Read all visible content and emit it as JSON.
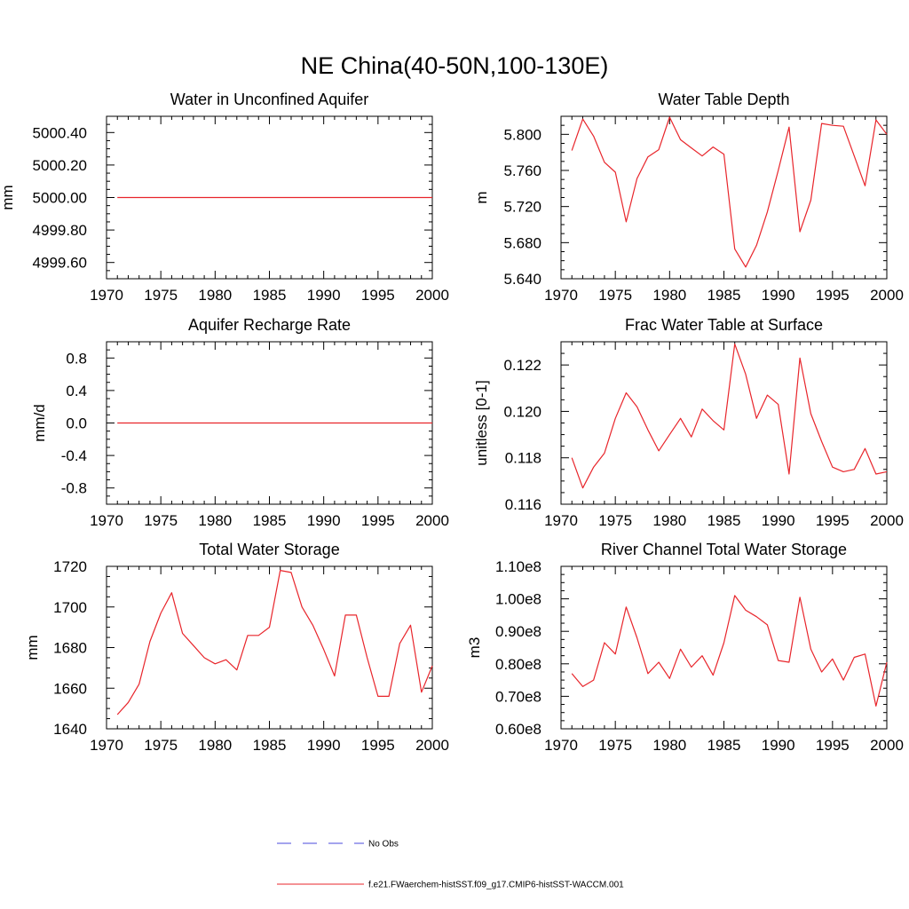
{
  "page_title": "NE China(40-50N,100-130E)",
  "legend": {
    "obs_label": "No Obs",
    "obs_color": "#4a4adc",
    "model_label": "f.e21.FWaerchem-histSST.f09_g17.CMIP6-histSST-WACCM.001",
    "model_color": "#e8252b"
  },
  "chart_data": [
    {
      "type": "line",
      "title": "Water in Unconfined Aquifer",
      "ylabel": "mm",
      "xlim": [
        1970,
        2000
      ],
      "ylim": [
        4999.5,
        5000.5
      ],
      "xticks": [
        1970,
        1975,
        1980,
        1985,
        1990,
        1995,
        2000
      ],
      "yticks": [
        4999.6,
        4999.8,
        5000.0,
        5000.2,
        5000.4
      ],
      "ytick_labels": [
        "4999.60",
        "4999.80",
        "5000.00",
        "5000.20",
        "5000.40"
      ],
      "x": [
        1971,
        1972,
        1973,
        1974,
        1975,
        1976,
        1977,
        1978,
        1979,
        1980,
        1981,
        1982,
        1983,
        1984,
        1985,
        1986,
        1987,
        1988,
        1989,
        1990,
        1991,
        1992,
        1993,
        1994,
        1995,
        1996,
        1997,
        1998,
        1999,
        2000
      ],
      "values": [
        5000,
        5000,
        5000,
        5000,
        5000,
        5000,
        5000,
        5000,
        5000,
        5000,
        5000,
        5000,
        5000,
        5000,
        5000,
        5000,
        5000,
        5000,
        5000,
        5000,
        5000,
        5000,
        5000,
        5000,
        5000,
        5000,
        5000,
        5000,
        5000,
        5000
      ]
    },
    {
      "type": "line",
      "title": "Water Table Depth",
      "ylabel": "m",
      "xlim": [
        1970,
        2000
      ],
      "ylim": [
        5.64,
        5.82
      ],
      "xticks": [
        1970,
        1975,
        1980,
        1985,
        1990,
        1995,
        2000
      ],
      "yticks": [
        5.64,
        5.68,
        5.72,
        5.76,
        5.8
      ],
      "ytick_labels": [
        "5.640",
        "5.680",
        "5.720",
        "5.760",
        "5.800"
      ],
      "x": [
        1971,
        1972,
        1973,
        1974,
        1975,
        1976,
        1977,
        1978,
        1979,
        1980,
        1981,
        1982,
        1983,
        1984,
        1985,
        1986,
        1987,
        1988,
        1989,
        1990,
        1991,
        1992,
        1993,
        1994,
        1995,
        1996,
        1997,
        1998,
        1999,
        2000
      ],
      "values": [
        5.782,
        5.817,
        5.798,
        5.769,
        5.758,
        5.703,
        5.751,
        5.775,
        5.783,
        5.819,
        5.794,
        5.785,
        5.776,
        5.786,
        5.778,
        5.673,
        5.653,
        5.677,
        5.714,
        5.76,
        5.808,
        5.692,
        5.727,
        5.812,
        5.81,
        5.809,
        5.776,
        5.743,
        5.816,
        5.8
      ]
    },
    {
      "type": "line",
      "title": "Aquifer Recharge Rate",
      "ylabel": "mm/d",
      "xlim": [
        1970,
        2000
      ],
      "ylim": [
        -1.0,
        1.0
      ],
      "xticks": [
        1970,
        1975,
        1980,
        1985,
        1990,
        1995,
        2000
      ],
      "yticks": [
        -0.8,
        -0.4,
        0.0,
        0.4,
        0.8
      ],
      "ytick_labels": [
        "-0.8",
        "-0.4",
        "0.0",
        "0.4",
        "0.8"
      ],
      "x": [
        1971,
        1972,
        1973,
        1974,
        1975,
        1976,
        1977,
        1978,
        1979,
        1980,
        1981,
        1982,
        1983,
        1984,
        1985,
        1986,
        1987,
        1988,
        1989,
        1990,
        1991,
        1992,
        1993,
        1994,
        1995,
        1996,
        1997,
        1998,
        1999,
        2000
      ],
      "values": [
        0,
        0,
        0,
        0,
        0,
        0,
        0,
        0,
        0,
        0,
        0,
        0,
        0,
        0,
        0,
        0,
        0,
        0,
        0,
        0,
        0,
        0,
        0,
        0,
        0,
        0,
        0,
        0,
        0,
        0
      ]
    },
    {
      "type": "line",
      "title": "Frac Water Table at Surface",
      "ylabel": "unitless [0-1]",
      "xlim": [
        1970,
        2000
      ],
      "ylim": [
        0.116,
        0.123
      ],
      "xticks": [
        1970,
        1975,
        1980,
        1985,
        1990,
        1995,
        2000
      ],
      "yticks": [
        0.116,
        0.118,
        0.12,
        0.122
      ],
      "ytick_labels": [
        "0.116",
        "0.118",
        "0.120",
        "0.122"
      ],
      "x": [
        1971,
        1972,
        1973,
        1974,
        1975,
        1976,
        1977,
        1978,
        1979,
        1980,
        1981,
        1982,
        1983,
        1984,
        1985,
        1986,
        1987,
        1988,
        1989,
        1990,
        1991,
        1992,
        1993,
        1994,
        1995,
        1996,
        1997,
        1998,
        1999,
        2000
      ],
      "values": [
        0.118,
        0.1167,
        0.1176,
        0.1182,
        0.1197,
        0.1208,
        0.1202,
        0.1192,
        0.1183,
        0.119,
        0.1197,
        0.1189,
        0.1201,
        0.1196,
        0.1192,
        0.1229,
        0.1216,
        0.1197,
        0.1207,
        0.1203,
        0.1173,
        0.1223,
        0.1199,
        0.1187,
        0.1176,
        0.1174,
        0.1175,
        0.1184,
        0.1173,
        0.1174
      ]
    },
    {
      "type": "line",
      "title": "Total Water Storage",
      "ylabel": "mm",
      "xlim": [
        1970,
        2000
      ],
      "ylim": [
        1640,
        1720
      ],
      "xticks": [
        1970,
        1975,
        1980,
        1985,
        1990,
        1995,
        2000
      ],
      "yticks": [
        1640,
        1660,
        1680,
        1700,
        1720
      ],
      "ytick_labels": [
        "1640",
        "1660",
        "1680",
        "1700",
        "1720"
      ],
      "x": [
        1971,
        1972,
        1973,
        1974,
        1975,
        1976,
        1977,
        1978,
        1979,
        1980,
        1981,
        1982,
        1983,
        1984,
        1985,
        1986,
        1987,
        1988,
        1989,
        1990,
        1991,
        1992,
        1993,
        1994,
        1995,
        1996,
        1997,
        1998,
        1999,
        2000
      ],
      "values": [
        1647,
        1653,
        1662,
        1683,
        1697,
        1707,
        1687,
        1681,
        1675,
        1672,
        1674,
        1669,
        1686,
        1686,
        1690,
        1718,
        1717,
        1700,
        1691,
        1679,
        1666,
        1696,
        1696,
        1675,
        1656,
        1656,
        1682,
        1691,
        1658,
        1671
      ]
    },
    {
      "type": "line",
      "title": "River Channel Total Water Storage",
      "ylabel": "m3",
      "xlim": [
        1970,
        2000
      ],
      "ylim": [
        0.6,
        1.1
      ],
      "xticks": [
        1970,
        1975,
        1980,
        1985,
        1990,
        1995,
        2000
      ],
      "yticks": [
        0.6,
        0.7,
        0.8,
        0.9,
        1.0,
        1.1
      ],
      "ytick_labels": [
        "0.60e8",
        "0.70e8",
        "0.80e8",
        "0.90e8",
        "1.00e8",
        "1.10e8"
      ],
      "x": [
        1971,
        1972,
        1973,
        1974,
        1975,
        1976,
        1977,
        1978,
        1979,
        1980,
        1981,
        1982,
        1983,
        1984,
        1985,
        1986,
        1987,
        1988,
        1989,
        1990,
        1991,
        1992,
        1993,
        1994,
        1995,
        1996,
        1997,
        1998,
        1999,
        2000
      ],
      "values": [
        0.77,
        0.73,
        0.75,
        0.865,
        0.83,
        0.975,
        0.88,
        0.77,
        0.805,
        0.755,
        0.845,
        0.79,
        0.825,
        0.765,
        0.865,
        1.01,
        0.965,
        0.945,
        0.92,
        0.81,
        0.805,
        1.005,
        0.845,
        0.775,
        0.815,
        0.75,
        0.82,
        0.83,
        0.67,
        0.805
      ]
    }
  ]
}
